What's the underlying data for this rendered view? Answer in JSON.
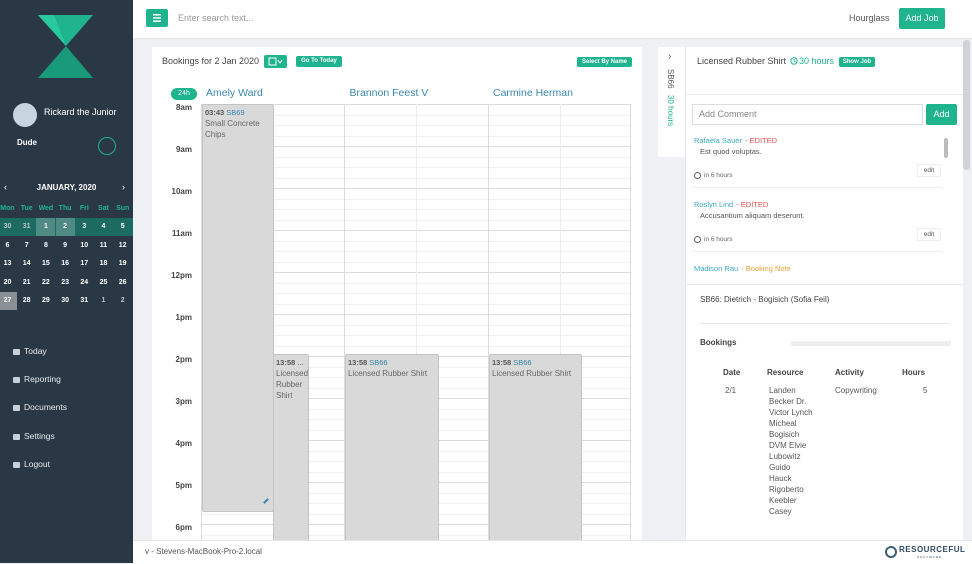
{
  "sidebar": {
    "user_name": "Rickard the Junior",
    "user_role": "Dude",
    "calendar": {
      "month_label": "JANUARY, 2020",
      "weekdays": [
        "Mon",
        "Tue",
        "Wed",
        "Thu",
        "Fri",
        "Sat",
        "Sun"
      ],
      "weeks": [
        [
          30,
          31,
          1,
          2,
          3,
          4,
          5
        ],
        [
          6,
          7,
          8,
          9,
          10,
          11,
          12
        ],
        [
          13,
          14,
          15,
          16,
          17,
          18,
          19
        ],
        [
          20,
          21,
          22,
          23,
          24,
          25,
          26
        ],
        [
          27,
          28,
          29,
          30,
          31,
          1,
          2
        ]
      ]
    },
    "nav": [
      "Today",
      "Reporting",
      "Documents",
      "Settings",
      "Logout"
    ]
  },
  "topbar": {
    "search_placeholder": "Enter search text...",
    "brand": "Hourglass",
    "add_job": "Add Job"
  },
  "bookings": {
    "title": "Bookings for 2 Jan 2020",
    "go_today": "Go To Today",
    "select_by_name": "Select By Name",
    "range_badge": "24h",
    "times": [
      "8am",
      "9am",
      "10am",
      "11am",
      "12pm",
      "1pm",
      "2pm",
      "3pm",
      "4pm",
      "5pm",
      "6pm"
    ],
    "resources": [
      {
        "name": "Amely Ward",
        "events": [
          {
            "time": "03:43",
            "code": "SB69",
            "title": "Small Concrete Chips"
          },
          {
            "time": "13:58",
            "code": "...",
            "title": "Licensed Rubber Shirt"
          }
        ]
      },
      {
        "name": "Brannon Feest V",
        "events": [
          {
            "time": "13:58",
            "code": "SB66",
            "title": "Licensed Rubber Shirt"
          }
        ]
      },
      {
        "name": "Carmine Herman",
        "events": [
          {
            "time": "13:58",
            "code": "SB66",
            "title": "Licensed Rubber Shirt"
          }
        ]
      }
    ]
  },
  "strip": {
    "code": "SB66",
    "hours": "30 hours"
  },
  "job": {
    "title": "Licensed Rubber Shirt",
    "hours": "30 hours",
    "show_job": "Show Job",
    "comment_placeholder": "Add Comment",
    "add": "Add",
    "comments": [
      {
        "author": "Rafaela Sauer",
        "tag": "- EDITED",
        "text": "Est quod voluptas.",
        "time": "in 6 hours",
        "edit": "edit"
      },
      {
        "author": "Roslyn Lind",
        "tag": "- EDITED",
        "text": "Accusantium aliquam deserunt.",
        "time": "in 6 hours",
        "edit": "edit"
      },
      {
        "author": "Madison Rau",
        "tag": "- Booking Note"
      }
    ],
    "booking_ref": "SB66: Dietrich - Bogisich (Sofia Feil)",
    "bookings_heading": "Bookings",
    "table": {
      "headers": [
        "Date",
        "Resource",
        "Activity",
        "Hours"
      ],
      "rows": [
        [
          "2/1",
          "Landen Becker Dr. Victor Lynch Micheal Bogisich DVM Elvie Lubowitz Guido Hauck Rigoberto Keebler Casey",
          "Copywriting",
          "5"
        ]
      ]
    }
  },
  "footer": {
    "host": "v - Stevens-MacBook-Pro-2.local",
    "logo": "RESOURCEFUL",
    "logo_sub": "SOFTWARE"
  }
}
